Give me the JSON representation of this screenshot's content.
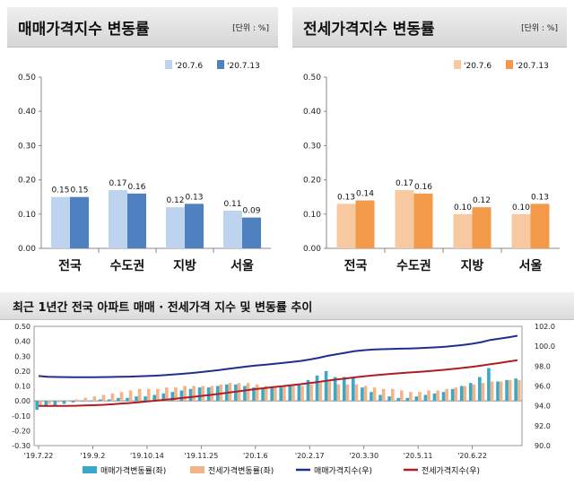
{
  "chart_data": [
    {
      "type": "bar",
      "title": "매매가격지수 변동률",
      "unit": "[단위 : %]",
      "categories": [
        "전국",
        "수도권",
        "지방",
        "서울"
      ],
      "ylim": [
        0,
        0.5
      ],
      "yticks": [
        "0.00",
        "0.10",
        "0.20",
        "0.30",
        "0.40",
        "0.50"
      ],
      "legend_position": "top-right",
      "series": [
        {
          "name": "'20.7.6",
          "color": "#bdd3ee",
          "values": [
            0.15,
            0.17,
            0.12,
            0.11
          ],
          "labels": [
            "0.15",
            "0.17",
            "0.12",
            "0.11"
          ]
        },
        {
          "name": "'20.7.13",
          "color": "#4f80c0",
          "values": [
            0.15,
            0.16,
            0.13,
            0.09
          ],
          "labels": [
            "0.15",
            "0.16",
            "0.13",
            "0.09"
          ]
        }
      ]
    },
    {
      "type": "bar",
      "title": "전세가격지수 변동률",
      "unit": "[단위 : %]",
      "categories": [
        "전국",
        "수도권",
        "지방",
        "서울"
      ],
      "ylim": [
        0,
        0.5
      ],
      "yticks": [
        "0.00",
        "0.10",
        "0.20",
        "0.30",
        "0.40",
        "0.50"
      ],
      "legend_position": "top-right",
      "series": [
        {
          "name": "'20.7.6",
          "color": "#f8c9a0",
          "values": [
            0.13,
            0.17,
            0.1,
            0.1
          ],
          "labels": [
            "0.13",
            "0.17",
            "0.10",
            "0.10"
          ]
        },
        {
          "name": "'20.7.13",
          "color": "#f29a4a",
          "values": [
            0.14,
            0.16,
            0.12,
            0.13
          ],
          "labels": [
            "0.14",
            "0.16",
            "0.12",
            "0.13"
          ]
        }
      ]
    },
    {
      "type": "bar+line",
      "title": "최근 1년간 전국 아파트 매매 · 전세가격 지수 및 변동률 추이",
      "x_labels": [
        "'19.7.22",
        "'19.9.2",
        "'19.10.14",
        "'19.11.25",
        "'20.1.6",
        "'20.2.17",
        "'20.3.30",
        "'20.5.11",
        "'20.6.22"
      ],
      "x_label_weeks": [
        0,
        6,
        12,
        18,
        24,
        30,
        36,
        42,
        48
      ],
      "y_left": {
        "range": [
          -0.3,
          0.5
        ],
        "ticks": [
          "-0.30",
          "-0.20",
          "-0.10",
          "0.00",
          "0.10",
          "0.20",
          "0.30",
          "0.40",
          "0.50"
        ]
      },
      "y_right": {
        "range": [
          90.0,
          102.0
        ],
        "ticks": [
          "90.0",
          "92.0",
          "94.0",
          "96.0",
          "98.0",
          "100.0",
          "102.0"
        ]
      },
      "legend_position": "bottom",
      "series": [
        {
          "name": "매매가격변동률(좌)",
          "kind": "bar",
          "color": "#3aa9c9",
          "values": [
            -0.06,
            -0.04,
            -0.03,
            -0.02,
            -0.01,
            0.0,
            0.0,
            0.01,
            0.01,
            0.02,
            0.02,
            0.03,
            0.03,
            0.04,
            0.05,
            0.06,
            0.07,
            0.08,
            0.09,
            0.09,
            0.1,
            0.11,
            0.11,
            0.1,
            0.09,
            0.08,
            0.09,
            0.09,
            0.1,
            0.11,
            0.14,
            0.17,
            0.2,
            0.16,
            0.16,
            0.16,
            0.09,
            0.06,
            0.04,
            0.03,
            0.02,
            0.02,
            0.03,
            0.04,
            0.05,
            0.06,
            0.08,
            0.1,
            0.12,
            0.16,
            0.22,
            0.13,
            0.14,
            0.15
          ]
        },
        {
          "name": "전세가격변동률(좌)",
          "kind": "bar",
          "color": "#f2b489",
          "values": [
            -0.03,
            -0.02,
            -0.01,
            0.0,
            0.01,
            0.02,
            0.03,
            0.04,
            0.05,
            0.06,
            0.07,
            0.08,
            0.08,
            0.08,
            0.09,
            0.09,
            0.1,
            0.1,
            0.1,
            0.1,
            0.11,
            0.12,
            0.12,
            0.12,
            0.11,
            0.1,
            0.1,
            0.1,
            0.1,
            0.1,
            0.11,
            0.12,
            0.13,
            0.11,
            0.11,
            0.11,
            0.1,
            0.09,
            0.08,
            0.08,
            0.07,
            0.06,
            0.06,
            0.07,
            0.07,
            0.08,
            0.09,
            0.1,
            0.11,
            0.12,
            0.13,
            0.13,
            0.14,
            0.14
          ]
        },
        {
          "name": "매매가격지수(우)",
          "kind": "line",
          "color": "#1f2f8f",
          "values": [
            97.0,
            96.93,
            96.9,
            96.89,
            96.88,
            96.88,
            96.88,
            96.89,
            96.9,
            96.92,
            96.94,
            96.97,
            97.0,
            97.04,
            97.09,
            97.16,
            97.23,
            97.31,
            97.4,
            97.5,
            97.6,
            97.72,
            97.84,
            97.95,
            98.05,
            98.13,
            98.22,
            98.31,
            98.41,
            98.52,
            98.66,
            98.83,
            99.03,
            99.19,
            99.35,
            99.51,
            99.6,
            99.66,
            99.7,
            99.73,
            99.75,
            99.77,
            99.8,
            99.84,
            99.89,
            99.95,
            100.03,
            100.13,
            100.25,
            100.41,
            100.63,
            100.76,
            100.9,
            101.05
          ]
        },
        {
          "name": "전세가격지수(우)",
          "kind": "line",
          "color": "#b01e23",
          "values": [
            94.0,
            94.0,
            94.0,
            94.0,
            94.01,
            94.03,
            94.06,
            94.1,
            94.15,
            94.21,
            94.28,
            94.36,
            94.44,
            94.52,
            94.61,
            94.7,
            94.8,
            94.9,
            95.0,
            95.1,
            95.21,
            95.33,
            95.45,
            95.57,
            95.68,
            95.78,
            95.88,
            95.98,
            96.08,
            96.18,
            96.29,
            96.41,
            96.54,
            96.65,
            96.76,
            96.87,
            96.97,
            97.06,
            97.14,
            97.22,
            97.29,
            97.35,
            97.41,
            97.48,
            97.55,
            97.63,
            97.72,
            97.82,
            97.93,
            98.05,
            98.18,
            98.31,
            98.45,
            98.59
          ]
        }
      ]
    }
  ]
}
